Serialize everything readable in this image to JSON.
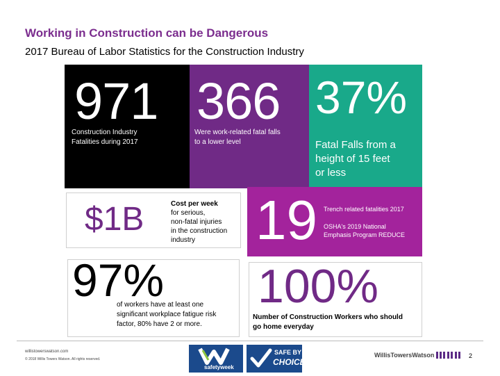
{
  "title": "Working in Construction can be Dangerous",
  "subtitle": "2017 Bureau of Labor Statistics for the Construction Industry",
  "stats": {
    "fatalities": {
      "value": "971",
      "label_line1": "Construction Industry",
      "label_line2": "Fatalities during 2017"
    },
    "lower_level": {
      "value": "366",
      "label_line1": "Were work-related fatal falls",
      "label_line2": "to a lower level"
    },
    "falls_height": {
      "value": "37%",
      "label_line1": "Fatal Falls from a",
      "label_line2": "height of 15 feet",
      "label_line3": "or less"
    },
    "cost": {
      "value": "$1B",
      "label_bold": "Cost per week",
      "label_line1": "for serious,",
      "label_line2": "non-fatal injuries",
      "label_line3": "in the construction",
      "label_line4": "industry"
    },
    "trench": {
      "value": "19",
      "label1": "Trench related fatalities 2017",
      "label2_line1": "OSHA's 2019 National",
      "label2_line2": "Emphasis Program REDUCE"
    },
    "fatigue": {
      "value": "97%",
      "label_line1": "of workers have at least one",
      "label_line2": "significant workplace fatigue risk",
      "label_line3": "factor, 80% have 2 or more."
    },
    "home": {
      "value": "100%",
      "label_line1": "Number of Construction Workers who should",
      "label_line2": "go home everyday"
    }
  },
  "footer": {
    "url": "willistowerswatson.com",
    "copyright": "© 2018 Willis Towers Watson. All rights reserved.",
    "safety_week_text": "safetyweek",
    "safe_by_choice_line1": "SAFE BY",
    "safe_by_choice_line2": "CHOICE",
    "brand": "WillisTowersWatson",
    "page_number": "2"
  },
  "colors": {
    "title": "#7b2d8e",
    "black_tile": "#000000",
    "purple_tile": "#702a86",
    "green_tile": "#19a98a",
    "magenta_tile": "#a3239c",
    "stat_purple": "#702a86"
  }
}
